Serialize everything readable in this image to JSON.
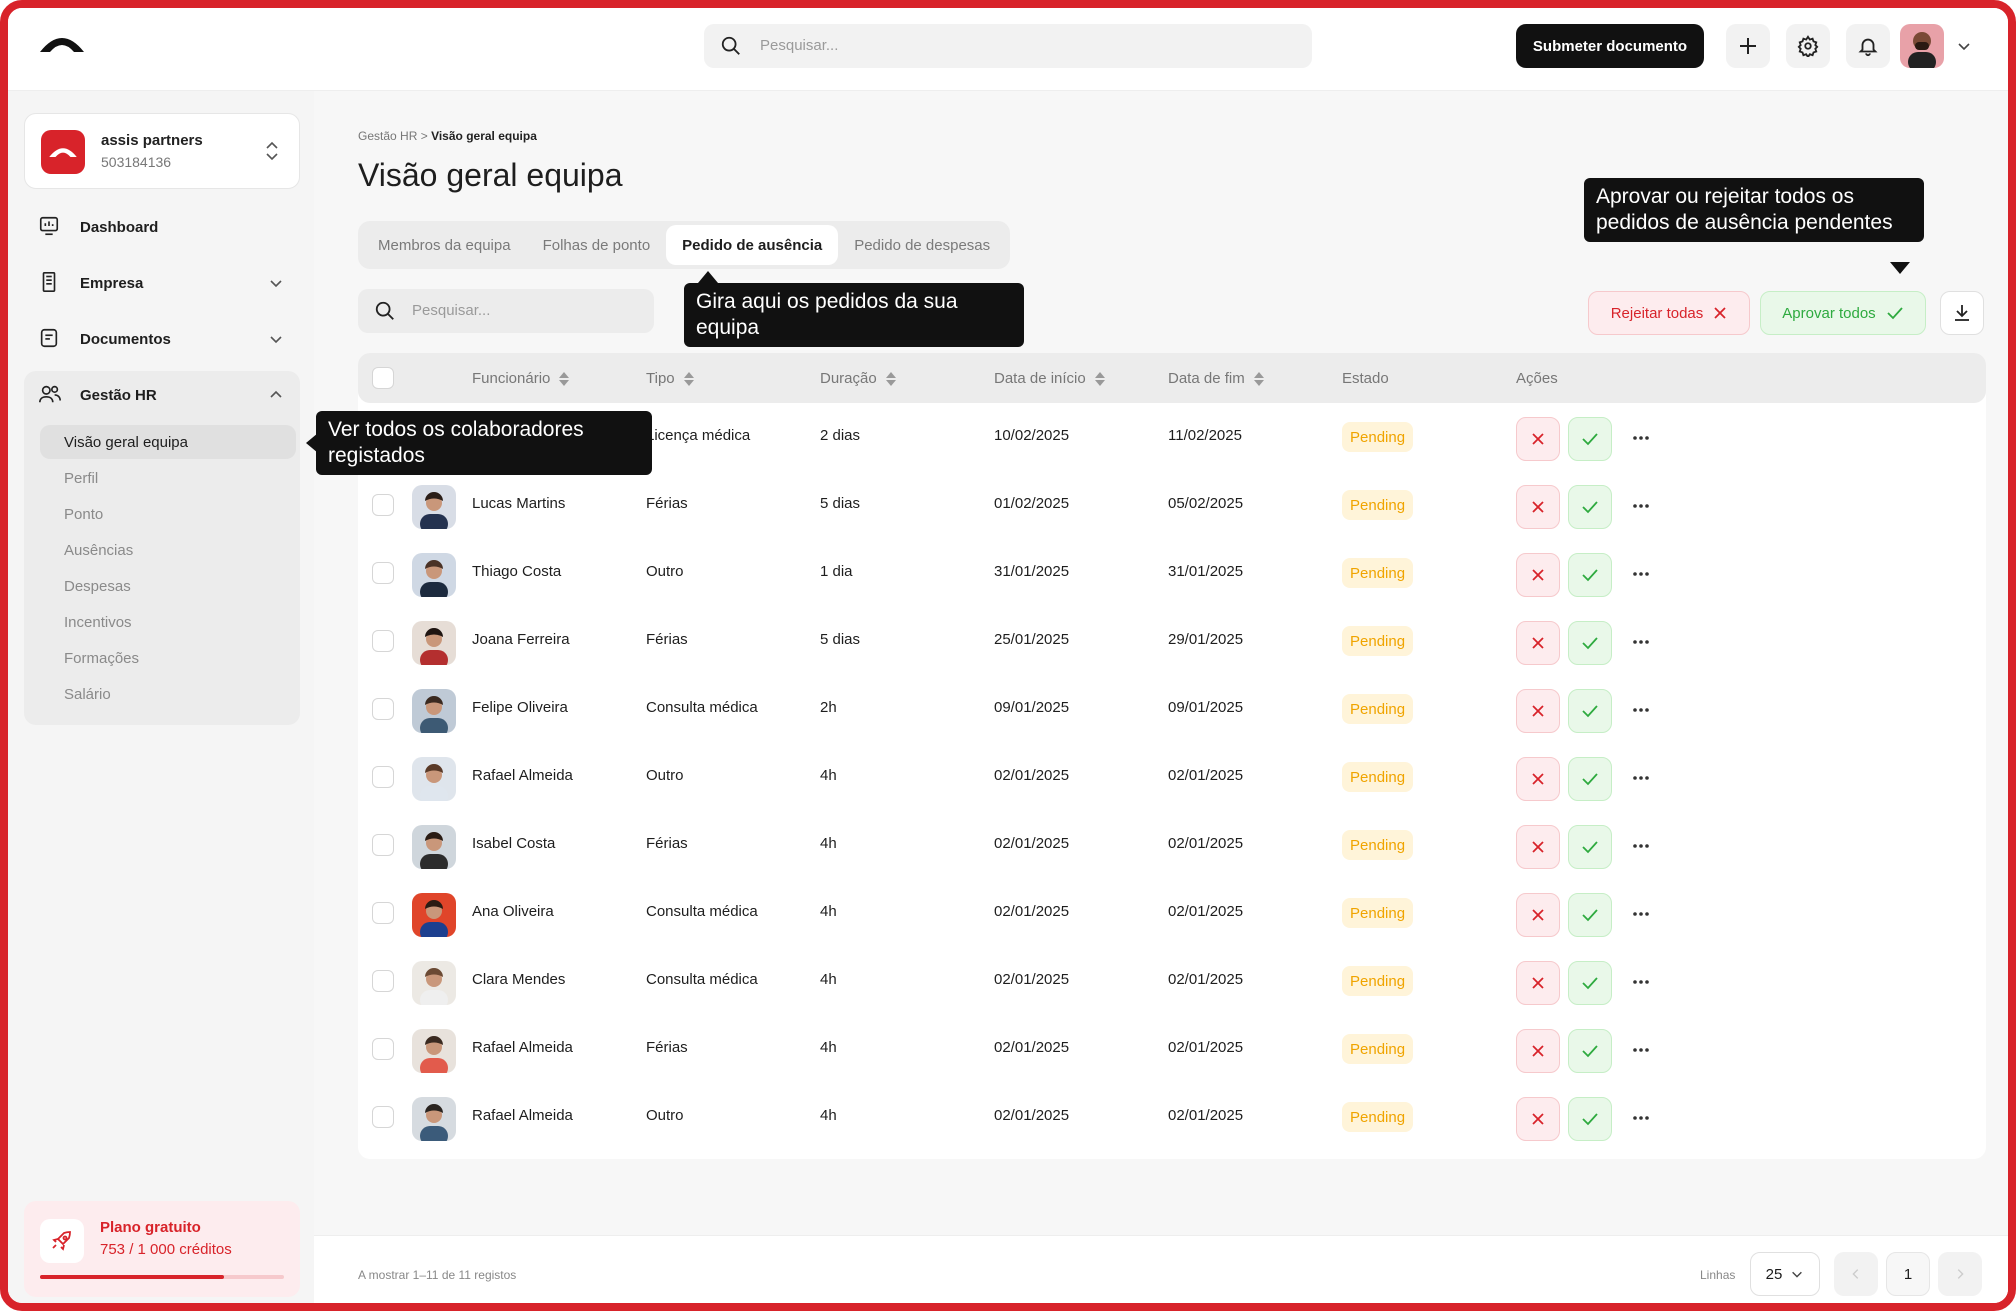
{
  "app": {
    "brand_color": "#d8232a"
  },
  "topbar": {
    "search_placeholder": "Pesquisar...",
    "submit_label": "Submeter documento",
    "icons": [
      "plus-icon",
      "gear-icon",
      "bell-icon"
    ]
  },
  "sidebar": {
    "company_name": "assis partners",
    "company_id": "503184136",
    "items": [
      {
        "label": "Dashboard",
        "icon": "dashboard-icon"
      },
      {
        "label": "Empresa",
        "icon": "building-icon"
      },
      {
        "label": "Documentos",
        "icon": "document-icon"
      },
      {
        "label": "Gestão HR",
        "icon": "users-icon"
      }
    ],
    "hr_sub": [
      "Visão geral equipa",
      "Perfil",
      "Ponto",
      "Ausências",
      "Despesas",
      "Incentivos",
      "Formações",
      "Salário"
    ],
    "plan": {
      "title": "Plano gratuito",
      "credits": "753 / 1 000 créditos",
      "progress": 0.753
    }
  },
  "main": {
    "breadcrumb_parent": "Gestão HR",
    "breadcrumb_sep": ">",
    "breadcrumb_current": "Visão geral equipa",
    "title": "Visão geral equipa",
    "tabs": [
      "Membros da equipa",
      "Folhas de ponto",
      "Pedido de ausência",
      "Pedido de despesas"
    ],
    "search_placeholder": "Pesquisar...",
    "reject_all": "Rejeitar todas",
    "approve_all": "Aprovar todos",
    "columns": [
      "Funcionário",
      "Tipo",
      "Duração",
      "Data de início",
      "Data de fim",
      "Estado",
      "Ações"
    ],
    "rows": [
      {
        "name": "",
        "type": "Licença médica",
        "duration": "2 dias",
        "start": "10/02/2025",
        "end": "11/02/2025",
        "status": "Pending"
      },
      {
        "name": "Lucas Martins",
        "type": "Férias",
        "duration": "5 dias",
        "start": "01/02/2025",
        "end": "05/02/2025",
        "status": "Pending"
      },
      {
        "name": "Thiago Costa",
        "type": "Outro",
        "duration": "1 dia",
        "start": "31/01/2025",
        "end": "31/01/2025",
        "status": "Pending"
      },
      {
        "name": "Joana Ferreira",
        "type": "Férias",
        "duration": "5 dias",
        "start": "25/01/2025",
        "end": "29/01/2025",
        "status": "Pending"
      },
      {
        "name": "Felipe Oliveira",
        "type": "Consulta médica",
        "duration": "2h",
        "start": "09/01/2025",
        "end": "09/01/2025",
        "status": "Pending"
      },
      {
        "name": "Rafael Almeida",
        "type": "Outro",
        "duration": "4h",
        "start": "02/01/2025",
        "end": "02/01/2025",
        "status": "Pending"
      },
      {
        "name": "Isabel Costa",
        "type": "Férias",
        "duration": "4h",
        "start": "02/01/2025",
        "end": "02/01/2025",
        "status": "Pending"
      },
      {
        "name": "Ana Oliveira",
        "type": "Consulta médica",
        "duration": "4h",
        "start": "02/01/2025",
        "end": "02/01/2025",
        "status": "Pending"
      },
      {
        "name": "Clara Mendes",
        "type": "Consulta médica",
        "duration": "4h",
        "start": "02/01/2025",
        "end": "02/01/2025",
        "status": "Pending"
      },
      {
        "name": "Rafael Almeida",
        "type": "Férias",
        "duration": "4h",
        "start": "02/01/2025",
        "end": "02/01/2025",
        "status": "Pending"
      },
      {
        "name": "Rafael Almeida",
        "type": "Outro",
        "duration": "4h",
        "start": "02/01/2025",
        "end": "02/01/2025",
        "status": "Pending"
      }
    ],
    "footer": {
      "showing": "A mostrar 1–11 de 11 registos",
      "rows_label": "Linhas",
      "rows_value": "25",
      "page": "1"
    }
  },
  "tooltips": {
    "team": "Ver todos os colaboradores registados",
    "absence": "Gira aqui os pedidos da sua equipa",
    "approve": "Aprovar ou rejeitar todos os pedidos de ausência pendentes"
  }
}
